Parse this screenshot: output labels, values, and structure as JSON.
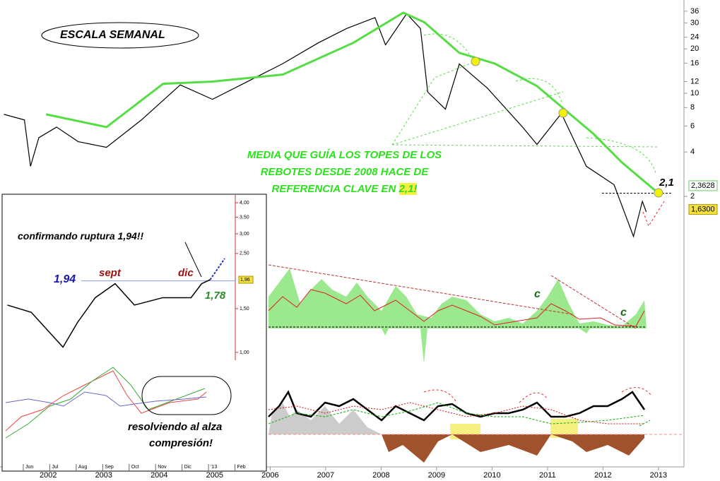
{
  "title_box": "ESCALA SEMANAL",
  "annotation": {
    "lines": [
      "MEDIA QUE GUÍA LOS TOPES DE LOS",
      "REBOTES DESDE 2008 HACE DE",
      "REFERENCIA CLAVE EN"
    ],
    "highlight": "2,1!"
  },
  "level": {
    "value": 2.1,
    "label": "2,1"
  },
  "price_tags": [
    {
      "value": 2.3628,
      "label": "2,3628"
    },
    {
      "value": 1.63,
      "label": "1,6300"
    }
  ],
  "indicator_labels": [
    "c",
    "c"
  ],
  "chart_data": {
    "type": "line",
    "log_scale": true,
    "xlim": [
      2001.13,
      2013.46
    ],
    "ylim": [
      1.01,
      42.9
    ],
    "xticks": [
      2002,
      2003,
      2004,
      2005,
      2006,
      2007,
      2008,
      2009,
      2010,
      2011,
      2012,
      2013
    ],
    "yticks": [
      2,
      4,
      6,
      8,
      10,
      12,
      16,
      20,
      24,
      30,
      36
    ],
    "series": [
      {
        "color": "#000000",
        "x": [
          2001.2,
          2001.57,
          2001.68,
          2001.83,
          2002.15,
          2002.54,
          2003.05,
          2003.68,
          2004.38,
          2004.96,
          2005.59,
          2006.23,
          2006.87,
          2007.38,
          2007.89,
          2008.08,
          2008.46,
          2008.71,
          2008.84,
          2009.16,
          2009.41,
          2009.92,
          2010.55,
          2010.81,
          2011.25,
          2011.7,
          2012.2,
          2012.55,
          2012.71,
          2012.78
        ],
        "values": [
          7.2,
          6.6,
          3.2,
          5.0,
          5.9,
          4.7,
          4.3,
          6.6,
          11.4,
          9.1,
          12.0,
          15.9,
          22,
          27.5,
          32.6,
          21.3,
          34.6,
          27.5,
          10.2,
          7.8,
          15.8,
          10.8,
          5.9,
          4.5,
          7.3,
          3.2,
          2.4,
          1.07,
          1.85,
          1.57
        ]
      },
      {
        "color": "#55dd44",
        "x": [
          2001.96,
          2003.05,
          2004.07,
          2004.96,
          2006.23,
          2007.5,
          2008.4,
          2008.78,
          2009.41,
          2010.05,
          2010.81,
          2011.32,
          2011.83,
          2012.34,
          2013.0
        ],
        "values": [
          7.2,
          5.9,
          11.6,
          12,
          13.4,
          22,
          35.2,
          30.3,
          18.8,
          15.9,
          11.2,
          7.7,
          5.3,
          3.4,
          2.1
        ]
      }
    ]
  },
  "inset": {
    "type": "line",
    "log_scale": true,
    "xlim": [
      5.2,
      15
    ],
    "ylim": [
      0.93,
      4.3
    ],
    "xticks": [
      {
        "value": 6,
        "label": "Jun"
      },
      {
        "value": 7,
        "label": "Jul"
      },
      {
        "value": 8,
        "label": "Aug"
      },
      {
        "value": 9,
        "label": "Sep"
      },
      {
        "value": 10,
        "label": "Oct"
      },
      {
        "value": 11,
        "label": "Nov"
      },
      {
        "value": 12,
        "label": "Dic"
      },
      {
        "value": 13,
        "label": "'13"
      },
      {
        "value": 14,
        "label": "Feb"
      }
    ],
    "yticks": [
      {
        "value": 4,
        "label": "4,00"
      },
      {
        "value": 3.5,
        "label": "3,50"
      },
      {
        "value": 3,
        "label": "3,00"
      },
      {
        "value": 2.5,
        "label": "2,50"
      },
      {
        "value": 1.5,
        "label": "1,50"
      },
      {
        "value": 1,
        "label": "1,00"
      }
    ],
    "price_tag": {
      "value": 1.96,
      "label": "1,96"
    },
    "x": [
      5.4,
      6.3,
      7.5,
      8.05,
      8.72,
      9.47,
      10.2,
      11.27,
      12.34,
      12.74,
      13.06
    ],
    "values": [
      1.55,
      1.45,
      1.05,
      1.32,
      1.66,
      1.89,
      1.55,
      1.66,
      1.66,
      1.89,
      1.96
    ],
    "texts": {
      "confirm": "confirmando ruptura 1,94!!",
      "level": "1,94",
      "sept": "sept",
      "dic": "dic",
      "low": "1,78",
      "resolve1": "resolviendo al alza",
      "resolve2": "compresión!"
    }
  }
}
